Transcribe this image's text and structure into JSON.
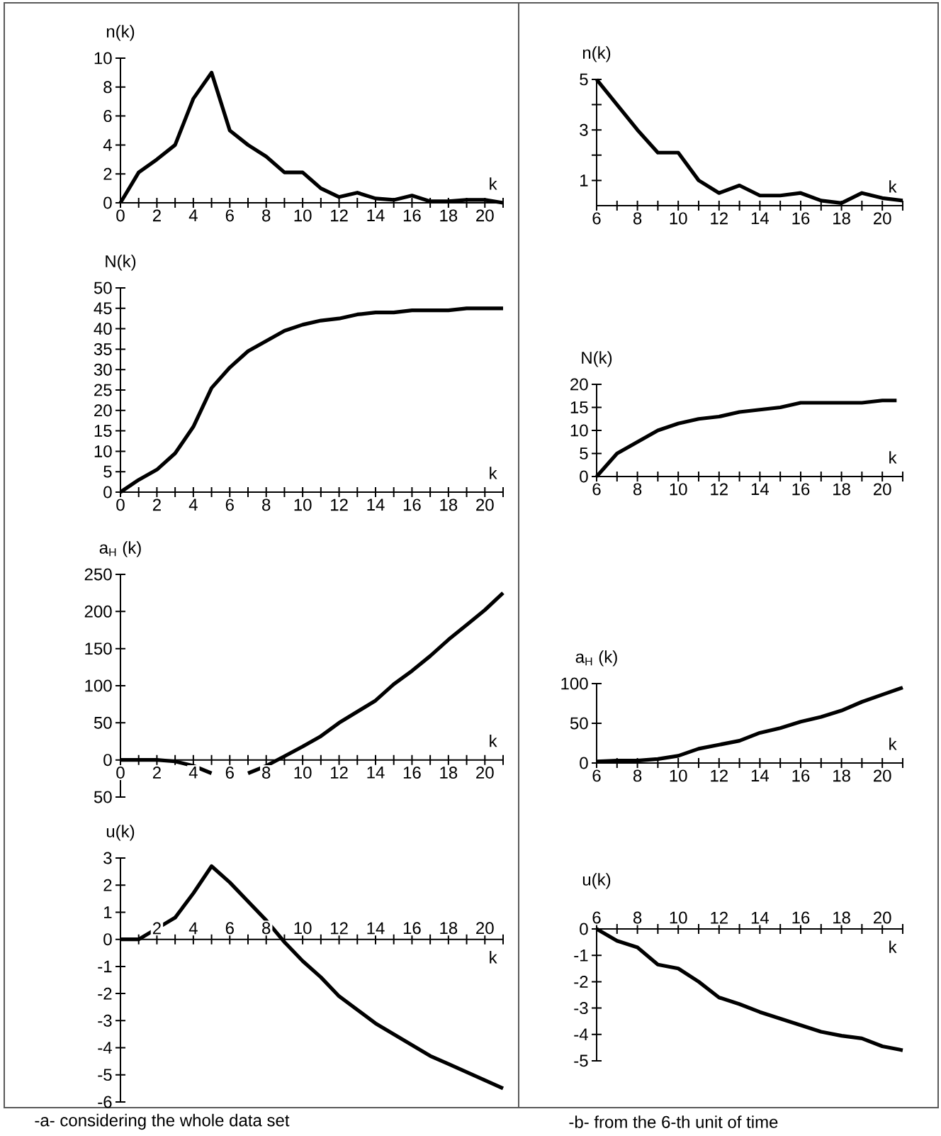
{
  "chart_data": [
    {
      "type": "line",
      "ylabel": "n(k)",
      "xlabel": "k",
      "color": "#000000",
      "xlim": [
        0,
        21
      ],
      "ylim": [
        0,
        10
      ],
      "x": [
        0,
        1,
        2,
        3,
        4,
        5,
        6,
        7,
        8,
        9,
        10,
        11,
        12,
        13,
        14,
        15,
        16,
        17,
        18,
        19,
        20,
        21
      ],
      "values": [
        0,
        2.1,
        3,
        4,
        7.2,
        9,
        5,
        4,
        3.2,
        2.1,
        2.1,
        1,
        0.4,
        0.7,
        0.3,
        0.2,
        0.5,
        0.1,
        0.1,
        0.2,
        0.2,
        0
      ],
      "xticks": [
        0,
        {
          "value": 1,
          "label": null
        },
        2,
        {
          "value": 3,
          "label": null
        },
        4,
        {
          "value": 5,
          "label": null
        },
        6,
        {
          "value": 7,
          "label": null
        },
        8,
        {
          "value": 9,
          "label": null
        },
        10,
        {
          "value": 11,
          "label": null
        },
        12,
        {
          "value": 13,
          "label": null
        },
        14,
        {
          "value": 15,
          "label": null
        },
        16,
        {
          "value": 17,
          "label": null
        },
        18,
        {
          "value": 19,
          "label": null
        },
        20,
        {
          "value": 21,
          "label": null
        }
      ],
      "yticks": [
        0,
        2,
        4,
        6,
        8,
        10
      ]
    },
    {
      "type": "line",
      "ylabel": "n(k)",
      "xlabel": "k",
      "color": "#000000",
      "xlim": [
        6,
        21
      ],
      "ylim": [
        0,
        5
      ],
      "x": [
        6,
        7,
        8,
        9,
        10,
        11,
        12,
        13,
        14,
        15,
        16,
        17,
        18,
        19,
        20,
        21
      ],
      "values": [
        5,
        4,
        3,
        2.1,
        2.1,
        1,
        0.5,
        0.8,
        0.4,
        0.4,
        0.5,
        0.2,
        0.1,
        0.5,
        0.3,
        0.2
      ],
      "xticks": [
        6,
        {
          "value": 7,
          "label": null
        },
        8,
        {
          "value": 9,
          "label": null
        },
        10,
        {
          "value": 11,
          "label": null
        },
        12,
        {
          "value": 13,
          "label": null
        },
        14,
        {
          "value": 15,
          "label": null
        },
        16,
        {
          "value": 17,
          "label": null
        },
        18,
        {
          "value": 19,
          "label": null
        },
        20,
        {
          "value": 21,
          "label": null
        }
      ],
      "yticks": [
        1,
        {
          "value": 2,
          "label": null
        },
        3,
        {
          "value": 4,
          "label": null
        },
        5
      ]
    },
    {
      "type": "line",
      "ylabel": "N(k)",
      "xlabel": "k",
      "color": "#000000",
      "xlim": [
        0,
        21
      ],
      "ylim": [
        0,
        50
      ],
      "x": [
        0,
        1,
        2,
        3,
        4,
        5,
        6,
        7,
        8,
        9,
        10,
        11,
        12,
        13,
        14,
        15,
        16,
        17,
        18,
        19,
        20,
        21
      ],
      "values": [
        0,
        3,
        5.5,
        9.5,
        16,
        25.5,
        30.5,
        34.5,
        37,
        39.5,
        41,
        42,
        42.5,
        43.5,
        44,
        44,
        44.5,
        44.5,
        44.5,
        45,
        45,
        45
      ],
      "xticks": [
        0,
        {
          "value": 1,
          "label": null
        },
        2,
        {
          "value": 3,
          "label": null
        },
        4,
        {
          "value": 5,
          "label": null
        },
        6,
        {
          "value": 7,
          "label": null
        },
        8,
        {
          "value": 9,
          "label": null
        },
        10,
        {
          "value": 11,
          "label": null
        },
        12,
        {
          "value": 13,
          "label": null
        },
        14,
        {
          "value": 15,
          "label": null
        },
        16,
        {
          "value": 17,
          "label": null
        },
        18,
        {
          "value": 19,
          "label": null
        },
        20,
        {
          "value": 21,
          "label": null
        }
      ],
      "yticks": [
        0,
        5,
        10,
        15,
        20,
        25,
        30,
        35,
        40,
        45,
        50
      ]
    },
    {
      "type": "line",
      "ylabel": "N(k)",
      "xlabel": "k",
      "color": "#000000",
      "xlim": [
        6,
        21
      ],
      "ylim": [
        0,
        20
      ],
      "x": [
        6,
        7,
        8,
        9,
        10,
        11,
        12,
        13,
        14,
        15,
        16,
        17,
        18,
        19,
        20,
        20.7
      ],
      "values": [
        0,
        5,
        7.5,
        10,
        11.5,
        12.5,
        13,
        14,
        14.5,
        15,
        16,
        16,
        16,
        16,
        16.5,
        16.5
      ],
      "xticks": [
        6,
        {
          "value": 7,
          "label": null
        },
        8,
        {
          "value": 9,
          "label": null
        },
        10,
        {
          "value": 11,
          "label": null
        },
        12,
        {
          "value": 13,
          "label": null
        },
        14,
        {
          "value": 15,
          "label": null
        },
        16,
        {
          "value": 17,
          "label": null
        },
        18,
        {
          "value": 19,
          "label": null
        },
        20,
        {
          "value": 21,
          "label": null
        }
      ],
      "yticks": [
        0,
        5,
        10,
        15,
        20
      ]
    },
    {
      "type": "line",
      "ylabel": "a$_{H}$ (k)",
      "xlabel": "k",
      "color": "#000000",
      "xlim": [
        0,
        21
      ],
      "ylim": [
        -50,
        250
      ],
      "x": [
        0,
        1,
        2,
        3,
        4,
        5,
        6,
        7,
        8,
        9,
        10,
        11,
        12,
        13,
        14,
        15,
        16,
        17,
        18,
        19,
        20,
        21
      ],
      "values": [
        0,
        0,
        0,
        -2,
        -8,
        -18,
        null,
        -18,
        -8,
        5,
        18,
        32,
        50,
        65,
        80,
        102,
        120,
        140,
        162,
        182,
        202,
        225
      ],
      "xticks": [
        0,
        {
          "value": 1,
          "label": null
        },
        2,
        {
          "value": 3,
          "label": null
        },
        4,
        {
          "value": 5,
          "label": null
        },
        6,
        {
          "value": 7,
          "label": null
        },
        8,
        {
          "value": 9,
          "label": null
        },
        10,
        {
          "value": 11,
          "label": null
        },
        12,
        {
          "value": 13,
          "label": null
        },
        14,
        {
          "value": 15,
          "label": null
        },
        16,
        {
          "value": 17,
          "label": null
        },
        18,
        {
          "value": 19,
          "label": null
        },
        20,
        {
          "value": 21,
          "label": null
        }
      ],
      "yticks": [
        {
          "value": -50,
          "label": "50"
        },
        0,
        50,
        100,
        150,
        200,
        250
      ]
    },
    {
      "type": "line",
      "ylabel": "a$_{H}$ (k)",
      "xlabel": "k",
      "color": "#000000",
      "xlim": [
        6,
        21
      ],
      "ylim": [
        0,
        100
      ],
      "x": [
        6,
        7,
        8,
        9,
        10,
        11,
        12,
        13,
        14,
        15,
        16,
        17,
        18,
        19,
        20,
        21
      ],
      "values": [
        2,
        3,
        3,
        5,
        9,
        18,
        23,
        28,
        38,
        44,
        52,
        58,
        66,
        77,
        86,
        95
      ],
      "xticks": [
        6,
        {
          "value": 7,
          "label": null
        },
        8,
        {
          "value": 9,
          "label": null
        },
        10,
        {
          "value": 11,
          "label": null
        },
        12,
        {
          "value": 13,
          "label": null
        },
        14,
        {
          "value": 15,
          "label": null
        },
        16,
        {
          "value": 17,
          "label": null
        },
        18,
        {
          "value": 19,
          "label": null
        },
        20,
        {
          "value": 21,
          "label": null
        }
      ],
      "yticks": [
        0,
        50,
        100
      ]
    },
    {
      "type": "line",
      "ylabel": "u(k)",
      "xlabel": "k",
      "color": "#000000",
      "xlim": [
        0,
        21
      ],
      "ylim": [
        -6,
        3
      ],
      "x": [
        0,
        1,
        2,
        3,
        4,
        5,
        6,
        7,
        8,
        9,
        10,
        11,
        12,
        13,
        14,
        15,
        16,
        17,
        18,
        19,
        20,
        21
      ],
      "values": [
        0,
        0,
        0.4,
        0.8,
        1.7,
        2.7,
        2.1,
        1.4,
        0.7,
        -0.1,
        -0.8,
        -1.4,
        -2.1,
        -2.6,
        -3.1,
        -3.5,
        -3.9,
        -4.3,
        -4.6,
        -4.9,
        -5.2,
        -5.5
      ],
      "xticks": [
        {
          "value": 1,
          "label": null
        },
        2,
        {
          "value": 3,
          "label": null
        },
        4,
        {
          "value": 5,
          "label": null
        },
        6,
        {
          "value": 7,
          "label": null
        },
        8,
        {
          "value": 9,
          "label": null
        },
        10,
        {
          "value": 11,
          "label": null
        },
        12,
        {
          "value": 13,
          "label": null
        },
        14,
        {
          "value": 15,
          "label": null
        },
        16,
        {
          "value": 17,
          "label": null
        },
        18,
        {
          "value": 19,
          "label": null
        },
        20,
        {
          "value": 21,
          "label": null
        }
      ],
      "yticks": [
        -6,
        -5,
        -4,
        -3,
        -2,
        -1,
        0,
        1,
        2,
        3
      ],
      "annotations": [
        "-a- considering the whole data set"
      ]
    },
    {
      "type": "line",
      "ylabel": "u(k)",
      "xlabel": "k",
      "color": "#000000",
      "xlim": [
        6,
        21
      ],
      "ylim": [
        -5,
        0
      ],
      "x": [
        6,
        7,
        8,
        9,
        10,
        11,
        12,
        13,
        14,
        15,
        16,
        17,
        18,
        19,
        20,
        21
      ],
      "values": [
        0,
        -0.45,
        -0.7,
        -1.35,
        -1.5,
        -2,
        -2.6,
        -2.85,
        -3.15,
        -3.4,
        -3.65,
        -3.9,
        -4.05,
        -4.15,
        -4.45,
        -4.6
      ],
      "xticks": [
        6,
        {
          "value": 7,
          "label": null
        },
        8,
        {
          "value": 9,
          "label": null
        },
        10,
        {
          "value": 11,
          "label": null
        },
        12,
        {
          "value": 13,
          "label": null
        },
        14,
        {
          "value": 15,
          "label": null
        },
        16,
        {
          "value": 17,
          "label": null
        },
        18,
        {
          "value": 19,
          "label": null
        },
        20,
        {
          "value": 21,
          "label": null
        }
      ],
      "yticks": [
        -5,
        -4,
        -3,
        -2,
        -1,
        0
      ],
      "annotations": [
        "-b- from the 6-th unit of time"
      ]
    }
  ]
}
